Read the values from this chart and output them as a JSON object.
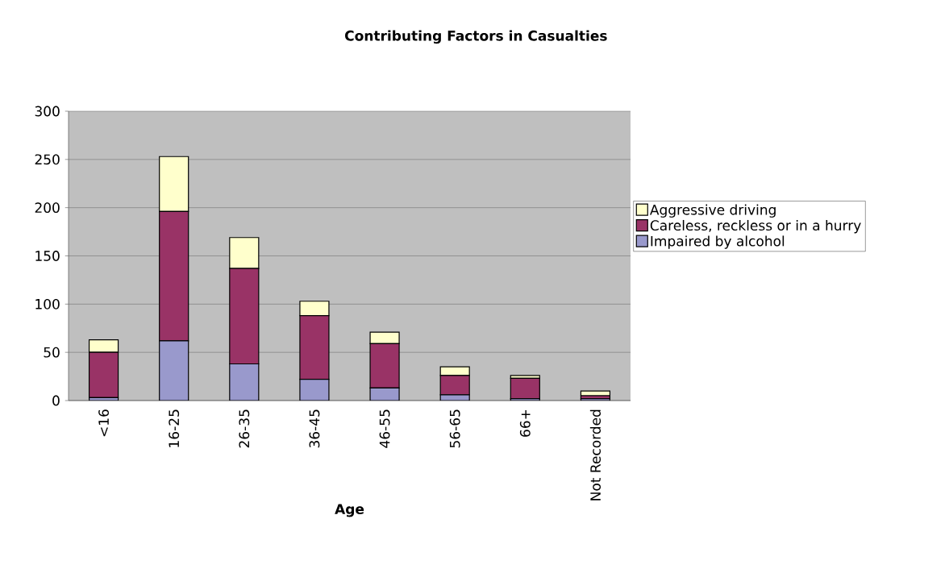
{
  "chart_data": {
    "type": "bar",
    "title": "Contributing Factors in Casualties",
    "xlabel": "Age",
    "categories": [
      "<16",
      "16-25",
      "26-35",
      "36-45",
      "46-55",
      "56-65",
      "66+",
      "Not Recorded"
    ],
    "stacked": true,
    "series": [
      {
        "name": "Impaired by alcohol",
        "color": "#9999cc",
        "values": [
          3,
          62,
          38,
          22,
          13,
          6,
          2,
          2
        ]
      },
      {
        "name": "Careless, reckless or in a hurry",
        "color": "#993366",
        "values": [
          47,
          134,
          99,
          66,
          46,
          20,
          21,
          3
        ]
      },
      {
        "name": "Aggressive driving",
        "color": "#ffffcc",
        "values": [
          13,
          57,
          32,
          15,
          12,
          9,
          3,
          5
        ]
      }
    ],
    "ylim": [
      0,
      300
    ],
    "yticks": [
      0,
      50,
      100,
      150,
      200,
      250,
      300
    ],
    "grid": "y",
    "legend": "right"
  }
}
